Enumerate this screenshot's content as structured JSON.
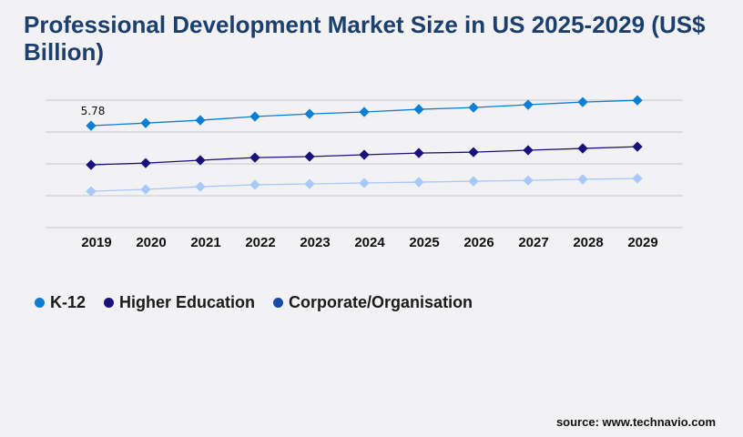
{
  "title": "Professional Development Market Size in US 2025-2029 (US$ Billion)",
  "source": "source: www.technavio.com",
  "chart_data": {
    "type": "line",
    "title": "Professional Development Market Size in US 2025-2029 (US$ Billion)",
    "categories": [
      "2019",
      "2020",
      "2021",
      "2022",
      "2023",
      "2024",
      "2025",
      "2026",
      "2027",
      "2028",
      "2029"
    ],
    "ylim": [
      0,
      7.23
    ],
    "grid": true,
    "legend_position": "bottom-left",
    "annotation": "5.78",
    "series": [
      {
        "name": "K-12",
        "color": "#0a7fd4",
        "legend_color": "#0a7fd4",
        "values": [
          5.78,
          5.93,
          6.09,
          6.3,
          6.45,
          6.56,
          6.71,
          6.81,
          6.97,
          7.12,
          7.22
        ]
      },
      {
        "name": "Higher Education",
        "color": "#1a1278",
        "legend_color": "#1a1278",
        "values": [
          3.56,
          3.66,
          3.82,
          3.97,
          4.03,
          4.13,
          4.23,
          4.28,
          4.39,
          4.49,
          4.59
        ]
      },
      {
        "name": "Corporate/Organisation",
        "color": "#a8c8f8",
        "legend_color": "#1a4aa8",
        "values": [
          2.06,
          2.17,
          2.32,
          2.43,
          2.48,
          2.53,
          2.58,
          2.63,
          2.68,
          2.74,
          2.79
        ]
      }
    ]
  }
}
